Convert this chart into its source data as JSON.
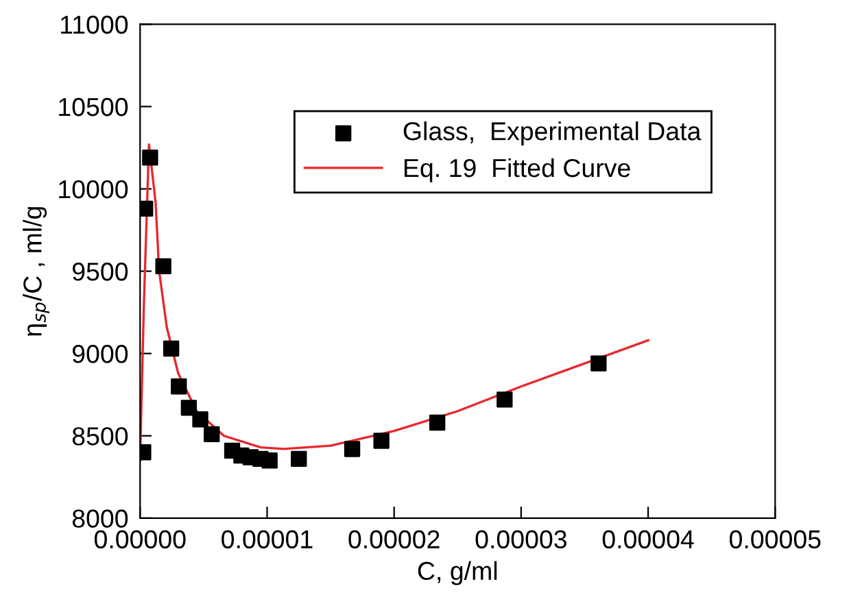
{
  "chart_data": {
    "type": "scatter",
    "xlabel": "C, g/ml",
    "ylabel": "η$_{sp}$/C , ml/g",
    "xlim": [
      0,
      5e-05
    ],
    "ylim": [
      8000,
      11000
    ],
    "xticks": [
      {
        "value": 0,
        "label": "0.00000"
      },
      {
        "value": 1e-05,
        "label": "0.00001"
      },
      {
        "value": 2e-05,
        "label": "0.00002"
      },
      {
        "value": 3e-05,
        "label": "0.00003"
      },
      {
        "value": 4e-05,
        "label": "0.00004"
      },
      {
        "value": 5e-05,
        "label": "0.00005"
      }
    ],
    "yticks": [
      8000,
      8500,
      9000,
      9500,
      10000,
      10500,
      11000
    ],
    "grid": false,
    "legend": "top right",
    "series": [
      {
        "name": "Glass,  Experimental Data",
        "color": "#000000",
        "marker": "square",
        "x": [
          2.5e-07,
          4e-07,
          7.9e-07,
          1.83e-06,
          2.45e-06,
          3.05e-06,
          3.84e-06,
          4.74e-06,
          5.64e-06,
          7.25e-06,
          7.97e-06,
          8.7e-06,
          9.48e-06,
          1.02e-05,
          1.25e-05,
          1.67e-05,
          1.9e-05,
          2.34e-05,
          2.87e-05,
          3.61e-05
        ],
        "values": [
          8400,
          9880,
          10190,
          9530,
          9030,
          8800,
          8670,
          8600,
          8510,
          8410,
          8380,
          8370,
          8360,
          8350,
          8360,
          8420,
          8470,
          8580,
          8720,
          8940
        ]
      },
      {
        "name": "Eq. 19  Fitted Curve",
        "type": "line",
        "color": "#e8262c",
        "marker": "none",
        "line_style": "solid",
        "x": [
          0.0,
          3e-07,
          7e-07,
          1.22e-06,
          1.5e-06,
          2.1e-06,
          3e-06,
          4.45e-06,
          6.6e-06,
          9.5e-06,
          1.13e-05,
          1.5e-05,
          2e-05,
          2.5e-05,
          3e-05,
          3.5e-05,
          4e-05
        ],
        "values": [
          8350,
          9300,
          10270,
          9920,
          9500,
          9160,
          8880,
          8650,
          8500,
          8430,
          8420,
          8440,
          8530,
          8650,
          8800,
          8940,
          9080
        ]
      }
    ]
  }
}
